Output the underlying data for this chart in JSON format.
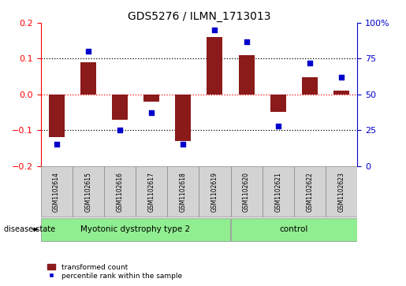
{
  "title": "GDS5276 / ILMN_1713013",
  "samples": [
    "GSM1102614",
    "GSM1102615",
    "GSM1102616",
    "GSM1102617",
    "GSM1102618",
    "GSM1102619",
    "GSM1102620",
    "GSM1102621",
    "GSM1102622",
    "GSM1102623"
  ],
  "red_values": [
    -0.12,
    0.09,
    -0.07,
    -0.02,
    -0.13,
    0.16,
    0.11,
    -0.05,
    0.048,
    0.01
  ],
  "blue_values": [
    15,
    80,
    25,
    37,
    15,
    95,
    87,
    28,
    72,
    62
  ],
  "ylim_left": [
    -0.2,
    0.2
  ],
  "ylim_right": [
    0,
    100
  ],
  "yticks_left": [
    -0.2,
    -0.1,
    0.0,
    0.1,
    0.2
  ],
  "yticks_right": [
    0,
    25,
    50,
    75,
    100
  ],
  "group1_indices": [
    0,
    1,
    2,
    3,
    4,
    5
  ],
  "group2_indices": [
    6,
    7,
    8,
    9
  ],
  "group1_label": "Myotonic dystrophy type 2",
  "group2_label": "control",
  "disease_state_label": "disease state",
  "legend_red": "transformed count",
  "legend_blue": "percentile rank within the sample",
  "bar_color": "#8B1A1A",
  "dot_color": "#0000CC",
  "group1_color": "#90EE90",
  "group2_color": "#90EE90",
  "label_bg_color": "#D3D3D3",
  "hline_colors": [
    "black",
    "red",
    "black"
  ],
  "hline_values": [
    -0.1,
    0.0,
    0.1
  ]
}
